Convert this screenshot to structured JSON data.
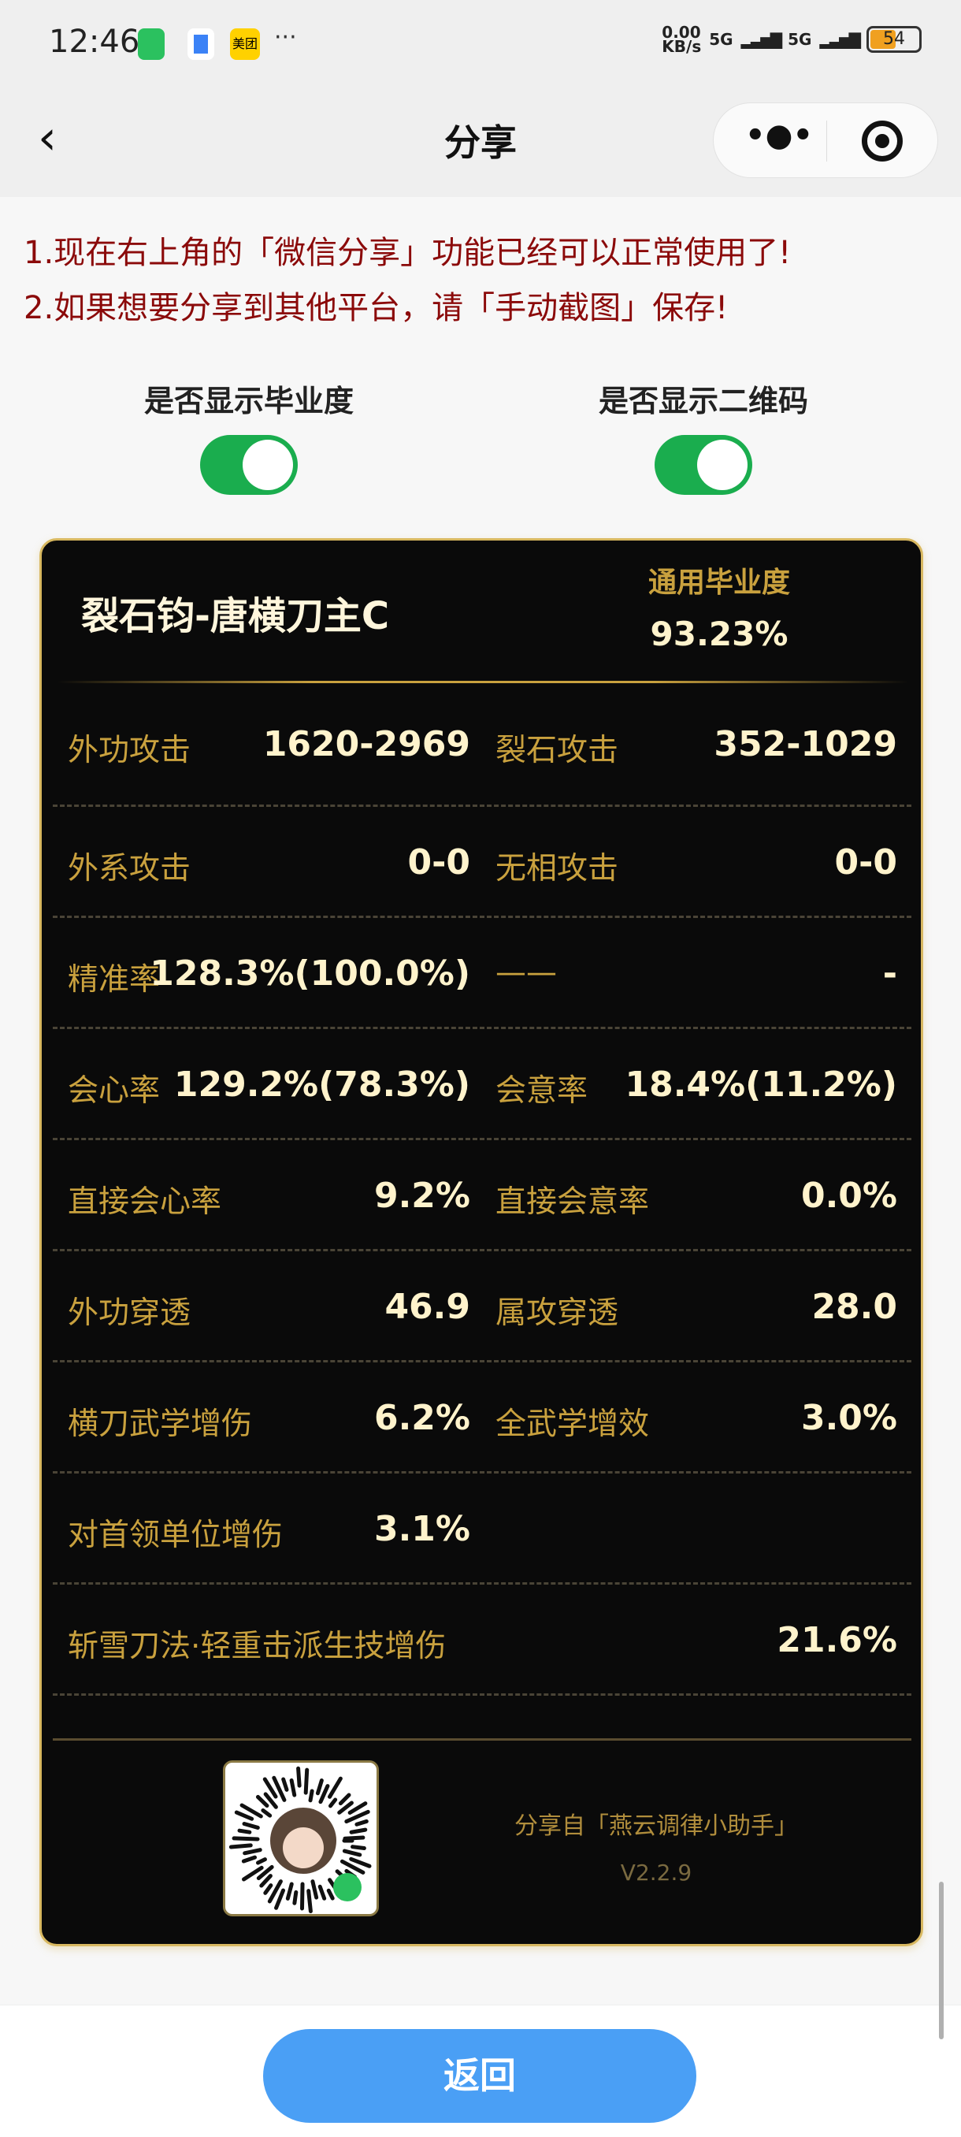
{
  "status_bar": {
    "time": "12:46",
    "net_speed": "0.00\nKB/s",
    "signal1": "5G",
    "signal2": "5G",
    "battery": "54",
    "app_icons": [
      "wechat-icon",
      "browser-icon",
      "meituan-icon"
    ],
    "meituan": "美团",
    "more": "···"
  },
  "nav": {
    "title": "分享",
    "back_icon": "chevron-left-icon",
    "more_icon": "more-dots-icon",
    "close_icon": "target-circle-icon"
  },
  "notices": [
    "1.现在右上角的「微信分享」功能已经可以正常使用了!",
    "2.如果想要分享到其他平台，请「手动截图」保存!"
  ],
  "toggles": [
    {
      "label": "是否显示毕业度",
      "on": true
    },
    {
      "label": "是否显示二维码",
      "on": true
    }
  ],
  "card": {
    "title": "裂石钧-唐横刀主C",
    "grad_label": "通用毕业度",
    "grad_value": "93.23%",
    "rows": [
      {
        "l": "外功攻击",
        "lv": "1620-2969",
        "r": "裂石攻击",
        "rv": "352-1029"
      },
      {
        "l": "外系攻击",
        "lv": "0-0",
        "r": "无相攻击",
        "rv": "0-0"
      },
      {
        "l": "精准率",
        "lv": "128.3%(100.0%)",
        "r": "——",
        "rv": "-"
      },
      {
        "l": "会心率",
        "lv": "129.2%(78.3%)",
        "r": "会意率",
        "rv": "18.4%(11.2%)"
      },
      {
        "l": "直接会心率",
        "lv": "9.2%",
        "r": "直接会意率",
        "rv": "0.0%"
      },
      {
        "l": "外功穿透",
        "lv": "46.9",
        "r": "属攻穿透",
        "rv": "28.0"
      },
      {
        "l": "横刀武学增伤",
        "lv": "6.2%",
        "r": "全武学增效",
        "rv": "3.0%"
      },
      {
        "l": "对首领单位增伤",
        "lv": "3.1%"
      },
      {
        "l": "斩雪刀法·轻重击派生技增伤",
        "full": "21.6%"
      }
    ],
    "share_from": "分享自「燕云调律小助手」",
    "version": "V2.2.9"
  },
  "back_button": "返回",
  "colors": {
    "accent_gold": "#c9a13e",
    "value": "#fff3cc",
    "toggle": "#1aad4e",
    "button": "#4a9ff5",
    "notice": "#8b0a0a"
  }
}
